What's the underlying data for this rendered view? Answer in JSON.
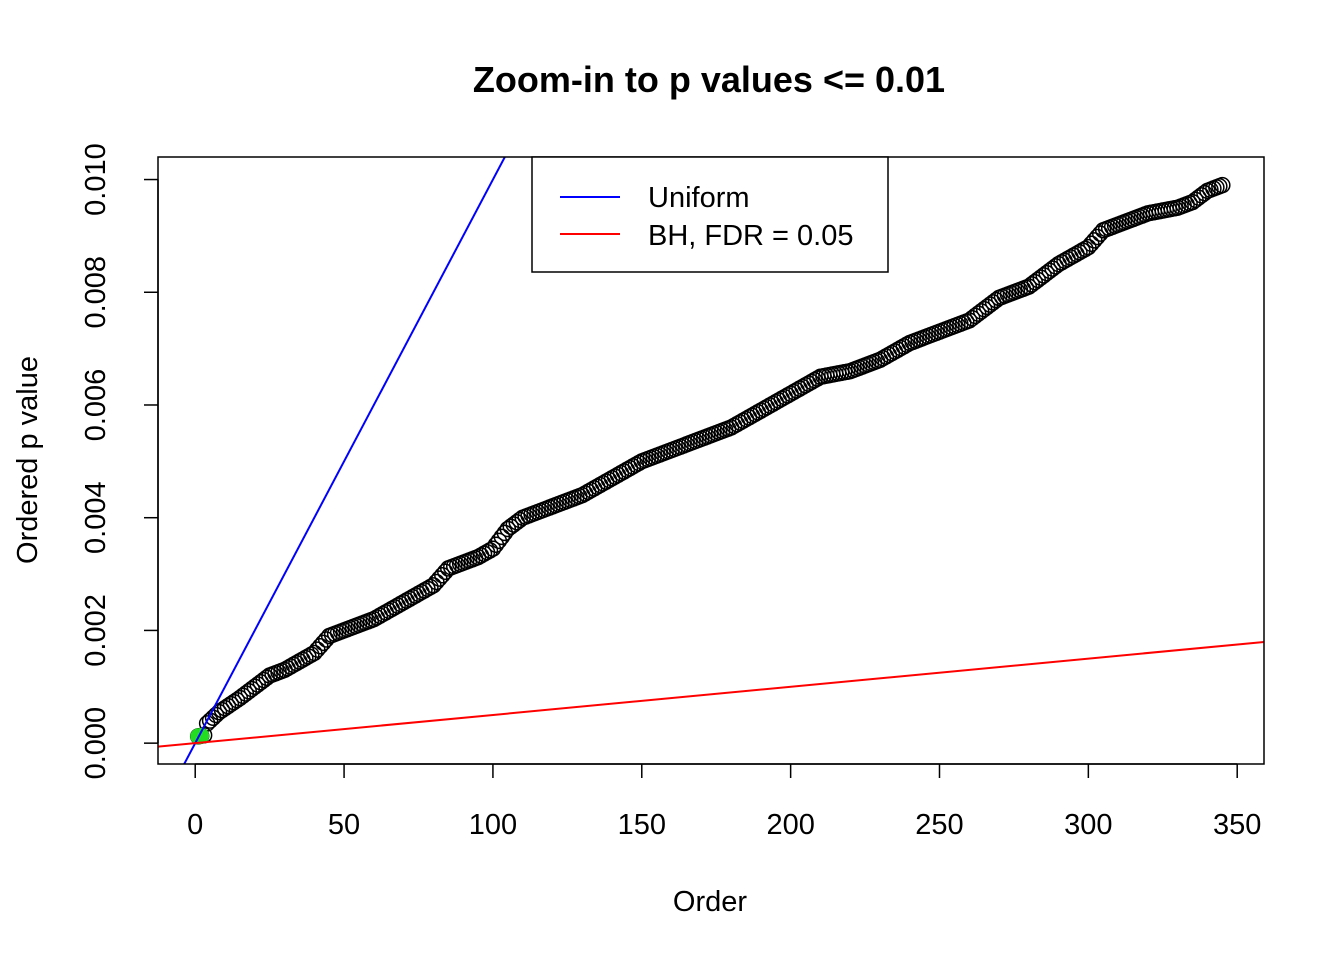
{
  "chart_data": {
    "type": "scatter",
    "title": "Zoom-in to p values <= 0.01",
    "xlabel": "Order",
    "ylabel": "Ordered p value",
    "xlim": [
      -12.5,
      359
    ],
    "ylim": [
      -0.00037,
      0.0104
    ],
    "x_ticks": [
      0,
      50,
      100,
      150,
      200,
      250,
      300,
      350
    ],
    "x_tick_labels": [
      "0",
      "50",
      "100",
      "150",
      "200",
      "250",
      "300",
      "350"
    ],
    "y_ticks": [
      0,
      0.002,
      0.004,
      0.006,
      0.008,
      0.01
    ],
    "y_tick_labels": [
      "0.000",
      "0.002",
      "0.004",
      "0.006",
      "0.008",
      "0.010"
    ],
    "grid": false,
    "legend_position": "top",
    "n_points": 345,
    "points_anchor_curve": [
      [
        1,
        0.00012
      ],
      [
        3,
        0.00014
      ],
      [
        4,
        0.00035
      ],
      [
        8,
        0.00055
      ],
      [
        15,
        0.0008
      ],
      [
        20,
        0.001
      ],
      [
        25,
        0.0012
      ],
      [
        30,
        0.0013
      ],
      [
        40,
        0.0016
      ],
      [
        45,
        0.0019
      ],
      [
        50,
        0.002
      ],
      [
        60,
        0.0022
      ],
      [
        70,
        0.0025
      ],
      [
        80,
        0.0028
      ],
      [
        85,
        0.0031
      ],
      [
        95,
        0.0033
      ],
      [
        100,
        0.00345
      ],
      [
        105,
        0.0038
      ],
      [
        110,
        0.004
      ],
      [
        120,
        0.0042
      ],
      [
        130,
        0.0044
      ],
      [
        140,
        0.0047
      ],
      [
        150,
        0.005
      ],
      [
        160,
        0.0052
      ],
      [
        170,
        0.0054
      ],
      [
        180,
        0.0056
      ],
      [
        190,
        0.0059
      ],
      [
        200,
        0.0062
      ],
      [
        210,
        0.0065
      ],
      [
        220,
        0.0066
      ],
      [
        230,
        0.0068
      ],
      [
        240,
        0.0071
      ],
      [
        250,
        0.0073
      ],
      [
        260,
        0.0075
      ],
      [
        270,
        0.0079
      ],
      [
        280,
        0.0081
      ],
      [
        290,
        0.0085
      ],
      [
        300,
        0.0088
      ],
      [
        305,
        0.0091
      ],
      [
        320,
        0.0094
      ],
      [
        330,
        0.0095
      ],
      [
        335,
        0.0096
      ],
      [
        340,
        0.0098
      ],
      [
        345,
        0.0099
      ]
    ],
    "highlighted_points": [
      [
        1,
        0.00012
      ],
      [
        2,
        0.00013
      ]
    ],
    "series": [
      {
        "name": "Uniform",
        "type": "line",
        "slope": 0.0001,
        "intercept": 0,
        "color": "#0000ff"
      },
      {
        "name": "BH, FDR = 0.05",
        "type": "line",
        "slope": 5e-06,
        "intercept": 0,
        "color": "#ff0000"
      }
    ],
    "colors": {
      "points": "#000000",
      "highlight": "#22dd22",
      "uniform": "#0000ff",
      "bh": "#ff0000"
    }
  }
}
